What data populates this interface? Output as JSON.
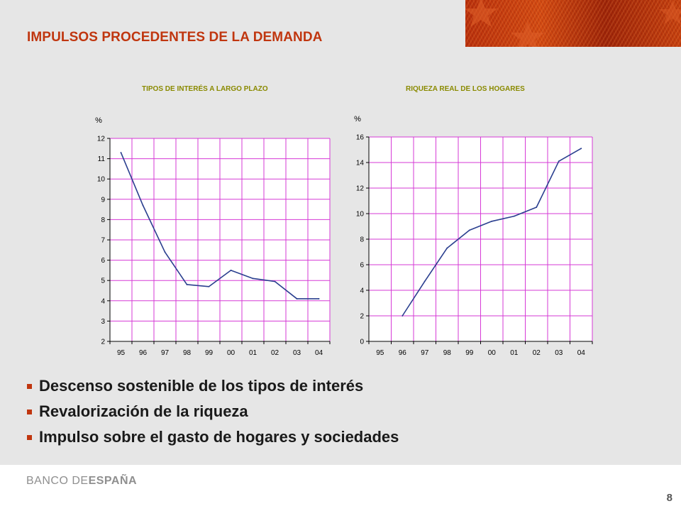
{
  "slide": {
    "title": "IMPULSOS PROCEDENTES DE LA DEMANDA",
    "page_number": "8",
    "accent_color": "#c0360f"
  },
  "bullets": [
    "Descenso sostenible de los tipos de interés",
    "Revalorización de la riqueza",
    "Impulso sobre el gasto de hogares y sociedades"
  ],
  "footer": {
    "logo_light": "BANCO DE",
    "logo_bold": "ESPAÑA"
  },
  "chart_data": [
    {
      "type": "line",
      "title": "TIPOS DE INTERÉS A LARGO PLAZO",
      "unit": "%",
      "categories": [
        "95",
        "96",
        "97",
        "98",
        "99",
        "00",
        "01",
        "02",
        "03",
        "04"
      ],
      "yticks": [
        "2",
        "3",
        "4",
        "5",
        "6",
        "7",
        "8",
        "9",
        "10",
        "11",
        "12"
      ],
      "ylim": [
        2,
        12
      ],
      "grid": true,
      "line_color": "#2a3f8f",
      "grid_color": "#d63ad6",
      "series": [
        {
          "x": [
            95,
            96,
            97,
            98,
            99,
            100,
            101,
            102,
            103,
            104
          ],
          "y": [
            11.3,
            8.7,
            6.4,
            4.8,
            4.7,
            5.5,
            5.1,
            4.95,
            4.1,
            4.1
          ]
        }
      ]
    },
    {
      "type": "line",
      "title": "RIQUEZA REAL DE LOS HOGARES",
      "unit": "%",
      "categories": [
        "95",
        "96",
        "97",
        "98",
        "99",
        "00",
        "01",
        "02",
        "03",
        "04"
      ],
      "yticks": [
        "0",
        "2",
        "4",
        "6",
        "8",
        "10",
        "12",
        "14",
        "16"
      ],
      "ylim": [
        0,
        16
      ],
      "grid": true,
      "line_color": "#2a3f8f",
      "grid_color": "#d63ad6",
      "series": [
        {
          "x": [
            96,
            97,
            98,
            99,
            100,
            101,
            102,
            103,
            104
          ],
          "y": [
            2.0,
            4.7,
            7.3,
            8.7,
            9.4,
            9.8,
            10.5,
            14.1,
            15.1
          ]
        }
      ]
    }
  ]
}
